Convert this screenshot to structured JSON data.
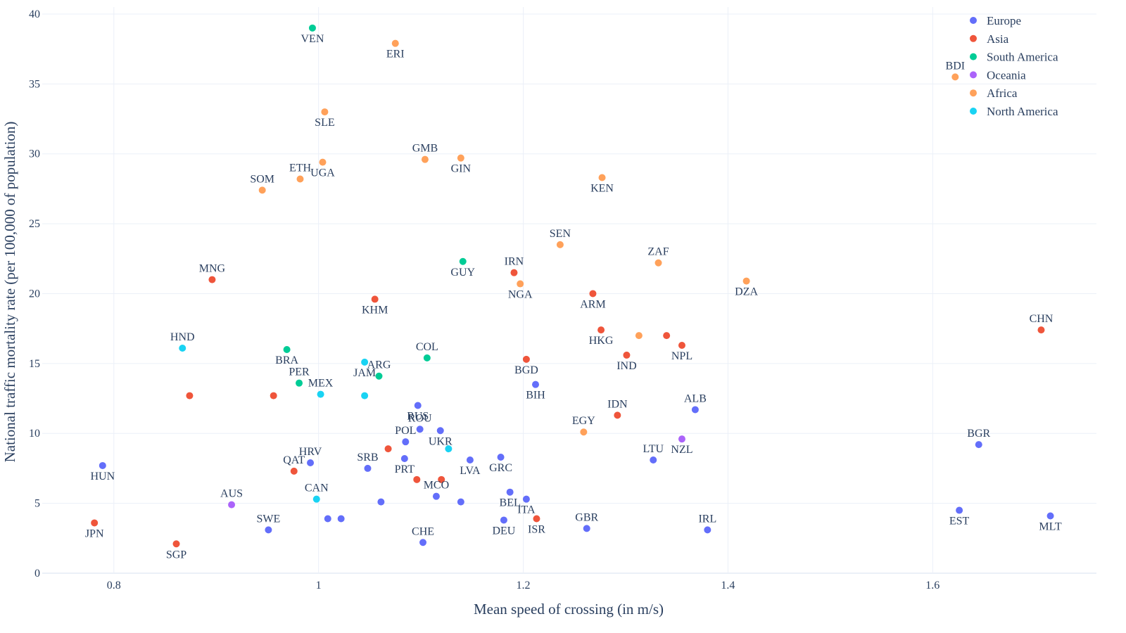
{
  "chart_data": {
    "type": "scatter",
    "xlabel": "Mean speed of crossing (in m/s)",
    "ylabel": "National traffic mortality rate (per 100,000 of population)",
    "xlim": [
      0.73,
      1.76
    ],
    "ylim": [
      0,
      40.5
    ],
    "xticks": [
      "0.8",
      "1",
      "1.2",
      "1.4",
      "1.6"
    ],
    "yticks": [
      "0",
      "5",
      "10",
      "15",
      "20",
      "25",
      "30",
      "35",
      "40"
    ],
    "grid": true,
    "legend_position": "top-right",
    "series": [
      {
        "name": "Europe",
        "color": "#636efa",
        "points": [
          {
            "x": 0.789,
            "y": 7.7,
            "label": "HUN",
            "pos": "below"
          },
          {
            "x": 0.951,
            "y": 3.1,
            "label": "SWE",
            "pos": "above"
          },
          {
            "x": 0.992,
            "y": 7.9,
            "label": "HRV",
            "pos": "above"
          },
          {
            "x": 1.009,
            "y": 3.9,
            "label": "",
            "pos": "none"
          },
          {
            "x": 1.022,
            "y": 3.9,
            "label": "",
            "pos": "none"
          },
          {
            "x": 1.048,
            "y": 7.5,
            "label": "SRB",
            "pos": "above"
          },
          {
            "x": 1.061,
            "y": 5.1,
            "label": "",
            "pos": "none"
          },
          {
            "x": 1.084,
            "y": 8.2,
            "label": "PRT",
            "pos": "below"
          },
          {
            "x": 1.085,
            "y": 9.4,
            "label": "POL",
            "pos": "above"
          },
          {
            "x": 1.097,
            "y": 12.0,
            "label": "RUS",
            "pos": "below"
          },
          {
            "x": 1.099,
            "y": 10.3,
            "label": "ROU",
            "pos": "above"
          },
          {
            "x": 1.102,
            "y": 2.2,
            "label": "CHE",
            "pos": "above"
          },
          {
            "x": 1.115,
            "y": 5.5,
            "label": "MCO",
            "pos": "above"
          },
          {
            "x": 1.119,
            "y": 10.2,
            "label": "UKR",
            "pos": "below"
          },
          {
            "x": 1.139,
            "y": 5.1,
            "label": "",
            "pos": "none"
          },
          {
            "x": 1.148,
            "y": 8.1,
            "label": "LVA",
            "pos": "below"
          },
          {
            "x": 1.178,
            "y": 8.3,
            "label": "GRC",
            "pos": "below"
          },
          {
            "x": 1.181,
            "y": 3.8,
            "label": "DEU",
            "pos": "below"
          },
          {
            "x": 1.187,
            "y": 5.8,
            "label": "BEL",
            "pos": "below"
          },
          {
            "x": 1.203,
            "y": 5.3,
            "label": "ITA",
            "pos": "below"
          },
          {
            "x": 1.212,
            "y": 13.5,
            "label": "BIH",
            "pos": "below"
          },
          {
            "x": 1.262,
            "y": 3.2,
            "label": "GBR",
            "pos": "above"
          },
          {
            "x": 1.327,
            "y": 8.1,
            "label": "LTU",
            "pos": "above"
          },
          {
            "x": 1.368,
            "y": 11.7,
            "label": "ALB",
            "pos": "above"
          },
          {
            "x": 1.38,
            "y": 3.1,
            "label": "IRL",
            "pos": "above"
          },
          {
            "x": 1.626,
            "y": 4.5,
            "label": "EST",
            "pos": "below"
          },
          {
            "x": 1.645,
            "y": 9.2,
            "label": "BGR",
            "pos": "above"
          },
          {
            "x": 1.715,
            "y": 4.1,
            "label": "MLT",
            "pos": "below"
          }
        ]
      },
      {
        "name": "Asia",
        "color": "#ef553b",
        "points": [
          {
            "x": 0.781,
            "y": 3.6,
            "label": "JPN",
            "pos": "below"
          },
          {
            "x": 0.861,
            "y": 2.1,
            "label": "SGP",
            "pos": "below"
          },
          {
            "x": 0.874,
            "y": 12.7,
            "label": "",
            "pos": "none"
          },
          {
            "x": 0.896,
            "y": 21.0,
            "label": "MNG",
            "pos": "above"
          },
          {
            "x": 0.956,
            "y": 12.7,
            "label": "",
            "pos": "none"
          },
          {
            "x": 0.976,
            "y": 7.3,
            "label": "QAT",
            "pos": "above"
          },
          {
            "x": 1.055,
            "y": 19.6,
            "label": "KHM",
            "pos": "below"
          },
          {
            "x": 1.068,
            "y": 8.9,
            "label": "",
            "pos": "none"
          },
          {
            "x": 1.096,
            "y": 6.7,
            "label": "",
            "pos": "none"
          },
          {
            "x": 1.12,
            "y": 6.7,
            "label": "",
            "pos": "none"
          },
          {
            "x": 1.191,
            "y": 21.5,
            "label": "IRN",
            "pos": "above"
          },
          {
            "x": 1.203,
            "y": 15.3,
            "label": "BGD",
            "pos": "below"
          },
          {
            "x": 1.213,
            "y": 3.9,
            "label": "ISR",
            "pos": "below"
          },
          {
            "x": 1.268,
            "y": 20.0,
            "label": "ARM",
            "pos": "below"
          },
          {
            "x": 1.276,
            "y": 17.4,
            "label": "HKG",
            "pos": "below"
          },
          {
            "x": 1.292,
            "y": 11.3,
            "label": "IDN",
            "pos": "above"
          },
          {
            "x": 1.301,
            "y": 15.6,
            "label": "IND",
            "pos": "below"
          },
          {
            "x": 1.34,
            "y": 17.0,
            "label": "",
            "pos": "none"
          },
          {
            "x": 1.355,
            "y": 16.3,
            "label": "NPL",
            "pos": "below"
          },
          {
            "x": 1.706,
            "y": 17.4,
            "label": "CHN",
            "pos": "above"
          }
        ]
      },
      {
        "name": "South America",
        "color": "#00cc96",
        "points": [
          {
            "x": 0.969,
            "y": 16.0,
            "label": "BRA",
            "pos": "below"
          },
          {
            "x": 0.981,
            "y": 13.6,
            "label": "PER",
            "pos": "above"
          },
          {
            "x": 0.994,
            "y": 39.0,
            "label": "VEN",
            "pos": "below"
          },
          {
            "x": 1.059,
            "y": 14.1,
            "label": "ARG",
            "pos": "above"
          },
          {
            "x": 1.106,
            "y": 15.4,
            "label": "COL",
            "pos": "above"
          },
          {
            "x": 1.141,
            "y": 22.3,
            "label": "GUY",
            "pos": "below"
          }
        ]
      },
      {
        "name": "Oceania",
        "color": "#ab63fa",
        "points": [
          {
            "x": 0.915,
            "y": 4.9,
            "label": "AUS",
            "pos": "above"
          },
          {
            "x": 1.355,
            "y": 9.6,
            "label": "NZL",
            "pos": "below"
          }
        ]
      },
      {
        "name": "Africa",
        "color": "#ffa15a",
        "points": [
          {
            "x": 0.945,
            "y": 27.4,
            "label": "SOM",
            "pos": "above"
          },
          {
            "x": 0.982,
            "y": 28.2,
            "label": "ETH",
            "pos": "above"
          },
          {
            "x": 1.004,
            "y": 29.4,
            "label": "UGA",
            "pos": "below"
          },
          {
            "x": 1.006,
            "y": 33.0,
            "label": "SLE",
            "pos": "below"
          },
          {
            "x": 1.075,
            "y": 37.9,
            "label": "ERI",
            "pos": "below"
          },
          {
            "x": 1.104,
            "y": 29.6,
            "label": "GMB",
            "pos": "above"
          },
          {
            "x": 1.139,
            "y": 29.7,
            "label": "GIN",
            "pos": "below"
          },
          {
            "x": 1.197,
            "y": 20.7,
            "label": "NGA",
            "pos": "below"
          },
          {
            "x": 1.236,
            "y": 23.5,
            "label": "SEN",
            "pos": "above"
          },
          {
            "x": 1.259,
            "y": 10.1,
            "label": "EGY",
            "pos": "above"
          },
          {
            "x": 1.277,
            "y": 28.3,
            "label": "KEN",
            "pos": "below"
          },
          {
            "x": 1.313,
            "y": 17.0,
            "label": "",
            "pos": "none"
          },
          {
            "x": 1.332,
            "y": 22.2,
            "label": "ZAF",
            "pos": "above"
          },
          {
            "x": 1.418,
            "y": 20.9,
            "label": "DZA",
            "pos": "below"
          },
          {
            "x": 1.622,
            "y": 35.5,
            "label": "BDI",
            "pos": "above"
          }
        ]
      },
      {
        "name": "North America",
        "color": "#19d3f3",
        "points": [
          {
            "x": 0.867,
            "y": 16.1,
            "label": "HND",
            "pos": "above"
          },
          {
            "x": 0.998,
            "y": 5.3,
            "label": "CAN",
            "pos": "above"
          },
          {
            "x": 1.002,
            "y": 12.8,
            "label": "MEX",
            "pos": "above"
          },
          {
            "x": 1.045,
            "y": 15.1,
            "label": "JAM",
            "pos": "below"
          },
          {
            "x": 1.045,
            "y": 12.7,
            "label": "",
            "pos": "none"
          },
          {
            "x": 1.127,
            "y": 8.9,
            "label": "",
            "pos": "none"
          }
        ]
      }
    ]
  }
}
